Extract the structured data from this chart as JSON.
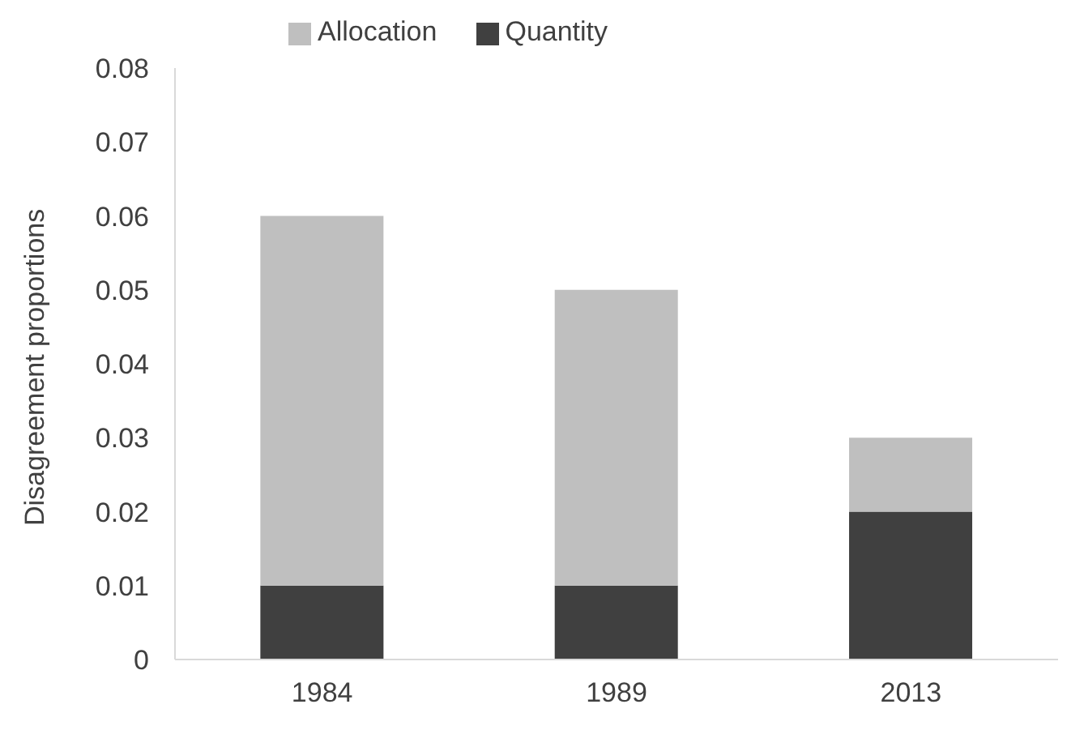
{
  "chart_data": {
    "type": "bar",
    "stacked": true,
    "ylabel": "Disagreement proportions",
    "categories": [
      "1984",
      "1989",
      "2013"
    ],
    "series": [
      {
        "name": "Quantity",
        "color": "#404040",
        "values": [
          0.01,
          0.01,
          0.02
        ]
      },
      {
        "name": "Allocation",
        "color": "#bfbfbf",
        "values": [
          0.05,
          0.04,
          0.01
        ]
      }
    ],
    "ylim": [
      0,
      0.08
    ],
    "yticks": [
      0,
      0.01,
      0.02,
      0.03,
      0.04,
      0.05,
      0.06,
      0.07,
      0.08
    ],
    "grid": false,
    "legend": "top"
  }
}
